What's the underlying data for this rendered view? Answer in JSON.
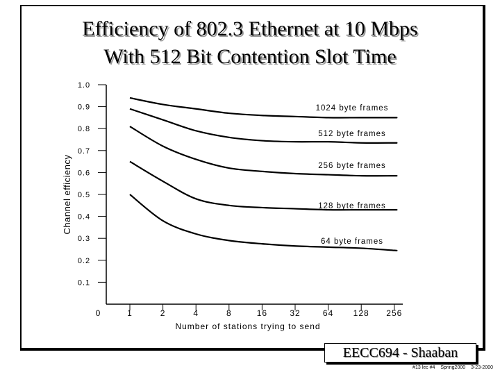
{
  "title": {
    "line1": "Efficiency of 802.3 Ethernet at 10 Mbps",
    "line2": "With 512 Bit Contention Slot Time"
  },
  "chart_data": {
    "type": "line",
    "ylabel": "Channel efficiency",
    "xlabel": "Number of stations trying to send",
    "y_ticks": [
      "1.0",
      "0.9",
      "0.8",
      "0.7",
      "0.6",
      "0.5",
      "0.4",
      "0.3",
      "0.2",
      "0.1",
      "0"
    ],
    "categories": [
      "1",
      "2",
      "4",
      "8",
      "16",
      "32",
      "64",
      "128",
      "256"
    ],
    "ylim": [
      0,
      1.0
    ],
    "series": [
      {
        "name": "1024 byte frames",
        "values": [
          0.94,
          0.91,
          0.89,
          0.87,
          0.86,
          0.855,
          0.85,
          0.85,
          0.85
        ]
      },
      {
        "name": "512 byte frames",
        "values": [
          0.89,
          0.84,
          0.79,
          0.76,
          0.745,
          0.74,
          0.74,
          0.735,
          0.735
        ]
      },
      {
        "name": "256 byte frames",
        "values": [
          0.81,
          0.72,
          0.66,
          0.62,
          0.605,
          0.595,
          0.59,
          0.585,
          0.585
        ]
      },
      {
        "name": "128 byte frames",
        "values": [
          0.65,
          0.56,
          0.48,
          0.45,
          0.44,
          0.435,
          0.43,
          0.43,
          0.43
        ]
      },
      {
        "name": "64 byte frames",
        "values": [
          0.5,
          0.38,
          0.32,
          0.29,
          0.275,
          0.265,
          0.26,
          0.255,
          0.245
        ]
      }
    ],
    "legend_labels": [
      "1024 byte frames",
      "512 byte frames",
      "256 byte frames",
      "128 byte frames",
      "64 byte frames"
    ]
  },
  "badge": {
    "label": "EECC694 - Shaaban"
  },
  "footer": {
    "lecture": "#13 lec #4",
    "term": "Spring2000",
    "date": "3-23-2000"
  }
}
